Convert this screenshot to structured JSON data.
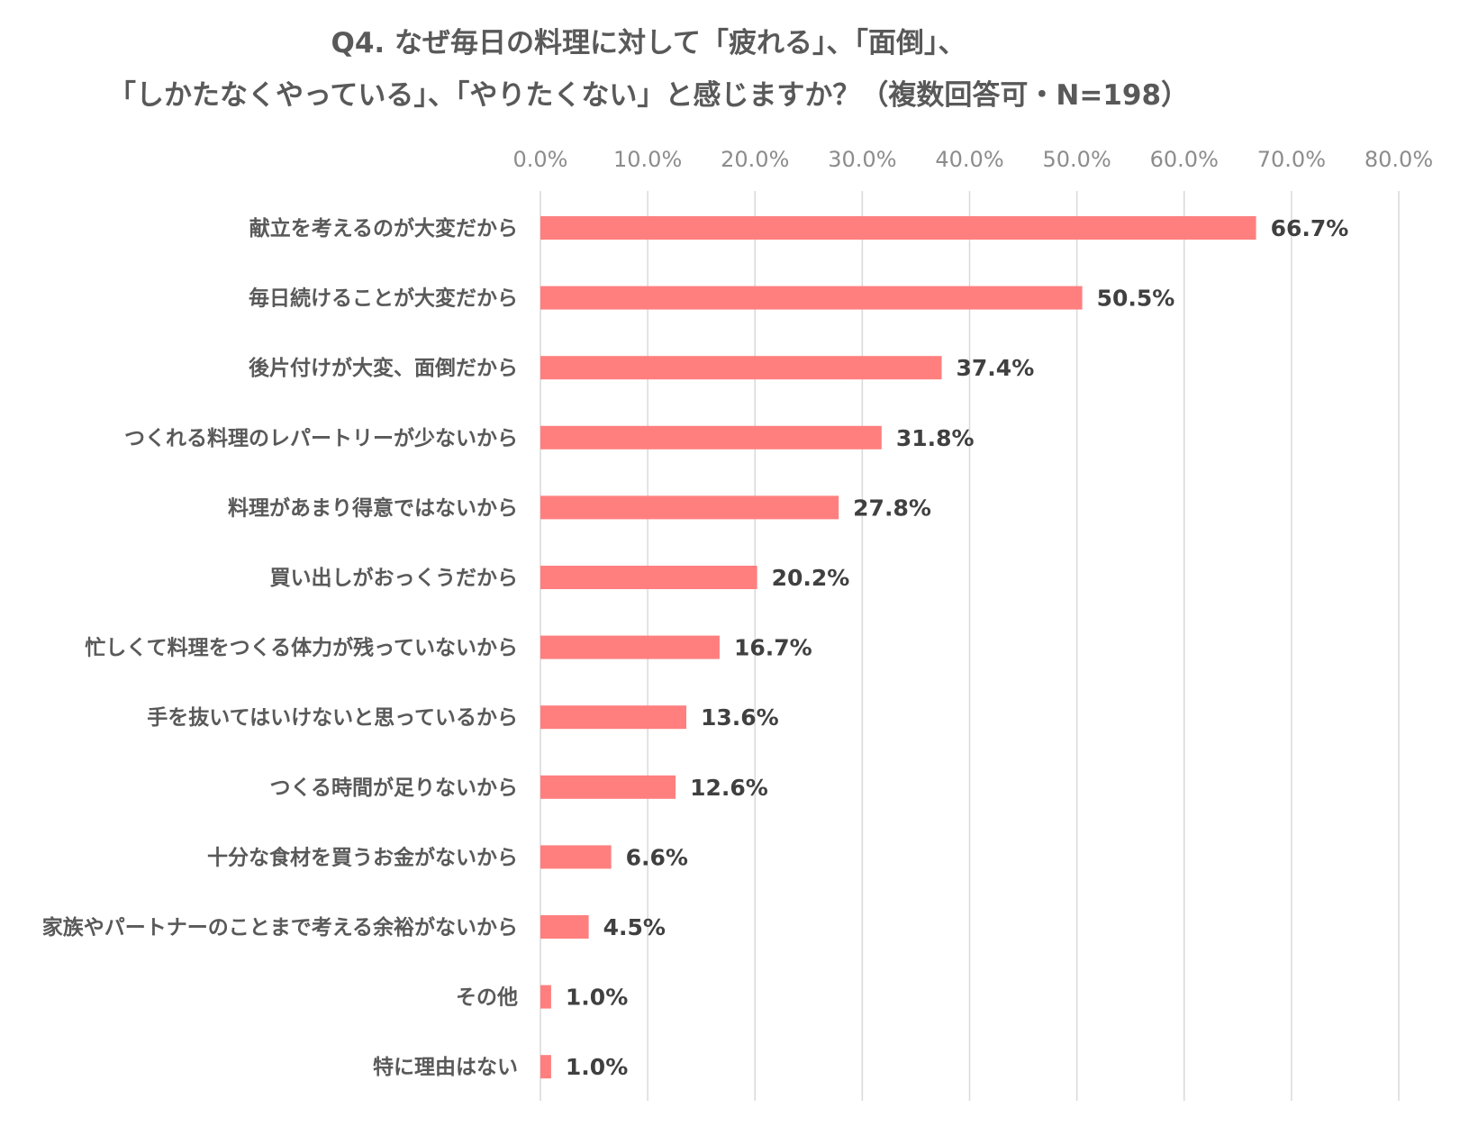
{
  "chart_data": {
    "type": "bar",
    "orientation": "horizontal",
    "title": [
      "Q4. なぜ毎日の料理に対して「疲れる」、「面倒」、",
      "「しかたなくやっている」、「やりたくない」と感じますか？（複数回答可・N=198）"
    ],
    "categories": [
      "献立を考えるのが大変だから",
      "毎日続けることが大変だから",
      "後片付けが大変、面倒だから",
      "つくれる料理のレパートリーが少ないから",
      "料理があまり得意ではないから",
      "買い出しがおっくうだから",
      "忙しくて料理をつくる体力が残っていないから",
      "手を抜いてはいけないと思っているから",
      "つくる時間が足りないから",
      "十分な食材を買うお金がないから",
      "家族やパートナーのことまで考える余裕がないから",
      "その他",
      "特に理由はない"
    ],
    "values": [
      66.7,
      50.5,
      37.4,
      31.8,
      27.8,
      20.2,
      16.7,
      13.6,
      12.6,
      6.6,
      4.5,
      1.0,
      1.0
    ],
    "value_labels": [
      "66.7%",
      "50.5%",
      "37.4%",
      "31.8%",
      "27.8%",
      "20.2%",
      "16.7%",
      "13.6%",
      "12.6%",
      "6.6%",
      "4.5%",
      "1.0%",
      "1.0%"
    ],
    "xlim": [
      0,
      80
    ],
    "xticks": [
      0,
      10,
      20,
      30,
      40,
      50,
      60,
      70,
      80
    ],
    "xtick_labels": [
      "0.0%",
      "10.0%",
      "20.0%",
      "30.0%",
      "40.0%",
      "50.0%",
      "60.0%",
      "70.0%",
      "80.0%"
    ],
    "xlabel": "",
    "ylabel": "",
    "grid": true,
    "legend": "none",
    "bar_color": "#FF7F7F",
    "grid_color": "#d9d9d9"
  }
}
